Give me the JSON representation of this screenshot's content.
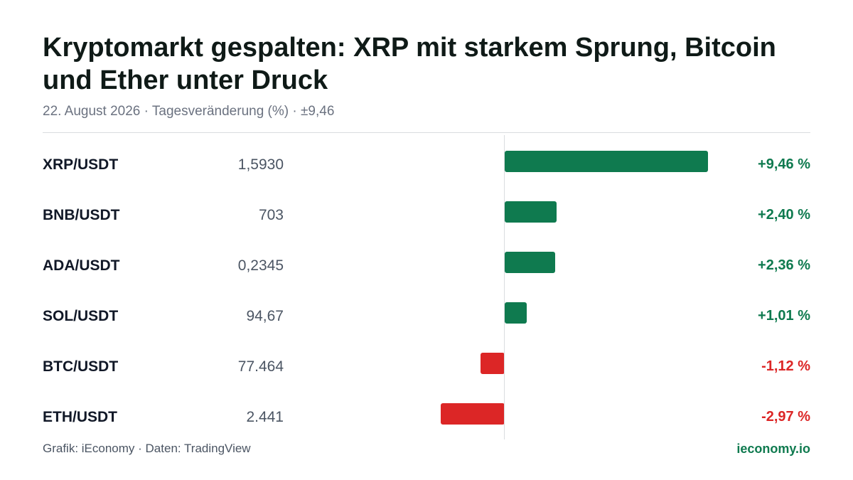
{
  "header": {
    "title": "Kryptomarkt gespalten: XRP mit starkem Sprung, Bitcoin und Ether unter Druck",
    "subtitle": "22. August 2026 · Tagesveränderung (%) · ±9,46"
  },
  "colors": {
    "positive": "#0f7a4f",
    "negative": "#dc2626"
  },
  "chart_data": {
    "type": "bar",
    "orientation": "horizontal",
    "scale_max_abs": 9.46,
    "rows": [
      {
        "pair": "XRP/USDT",
        "price": "1,5930",
        "change": 9.46,
        "change_label": "+9,46 %"
      },
      {
        "pair": "BNB/USDT",
        "price": "703",
        "change": 2.4,
        "change_label": "+2,40 %"
      },
      {
        "pair": "ADA/USDT",
        "price": "0,2345",
        "change": 2.36,
        "change_label": "+2,36 %"
      },
      {
        "pair": "SOL/USDT",
        "price": "94,67",
        "change": 1.01,
        "change_label": "+1,01 %"
      },
      {
        "pair": "BTC/USDT",
        "price": "77.464",
        "change": -1.12,
        "change_label": "-1,12 %"
      },
      {
        "pair": "ETH/USDT",
        "price": "2.441",
        "change": -2.97,
        "change_label": "-2,97 %"
      }
    ]
  },
  "footer": {
    "source": "Grafik: iEconomy · Daten: TradingView",
    "brand": "ieconomy.io"
  }
}
